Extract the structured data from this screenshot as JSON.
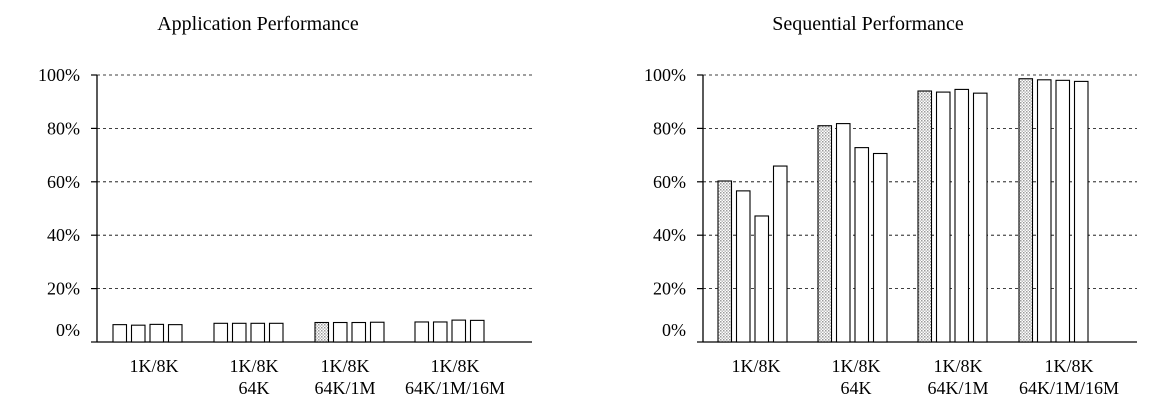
{
  "colors": {
    "shaded": "#d8d8d8",
    "plain": "#ffffff",
    "stroke": "#000000",
    "grid": "#000000"
  },
  "chart_data": [
    {
      "type": "bar",
      "title": "Application Performance",
      "ylim": [
        0,
        100
      ],
      "yticks": [
        "0%",
        "20%",
        "40%",
        "60%",
        "80%",
        "100%"
      ],
      "grid": true,
      "categories": [
        [
          "1K/8K"
        ],
        [
          "1K/8K",
          "64K"
        ],
        [
          "1K/8K",
          "64K/1M"
        ],
        [
          "1K/8K",
          "64K/1M/16M"
        ]
      ],
      "groups": [
        {
          "values": [
            6.5,
            6.3,
            6.6,
            6.5
          ],
          "shaded_first": false
        },
        {
          "values": [
            7.0,
            7.0,
            7.0,
            7.0
          ],
          "shaded_first": false
        },
        {
          "values": [
            7.3,
            7.3,
            7.3,
            7.4
          ],
          "shaded_first": true
        },
        {
          "values": [
            7.5,
            7.5,
            8.2,
            8.1
          ],
          "shaded_first": false
        }
      ]
    },
    {
      "type": "bar",
      "title": "Sequential Performance",
      "ylim": [
        0,
        100
      ],
      "yticks": [
        "0%",
        "20%",
        "40%",
        "60%",
        "80%",
        "100%"
      ],
      "grid": true,
      "categories": [
        [
          "1K/8K"
        ],
        [
          "1K/8K",
          "64K"
        ],
        [
          "1K/8K",
          "64K/1M"
        ],
        [
          "1K/8K",
          "64K/1M/16M"
        ]
      ],
      "groups": [
        {
          "values": [
            60.3,
            56.6,
            47.2,
            65.9
          ],
          "shaded_first": true
        },
        {
          "values": [
            81.0,
            81.8,
            72.8,
            70.6
          ],
          "shaded_first": true
        },
        {
          "values": [
            94.0,
            93.6,
            94.6,
            93.2
          ],
          "shaded_first": true
        },
        {
          "values": [
            98.6,
            98.2,
            98.0,
            97.6
          ],
          "shaded_first": true
        }
      ]
    }
  ]
}
